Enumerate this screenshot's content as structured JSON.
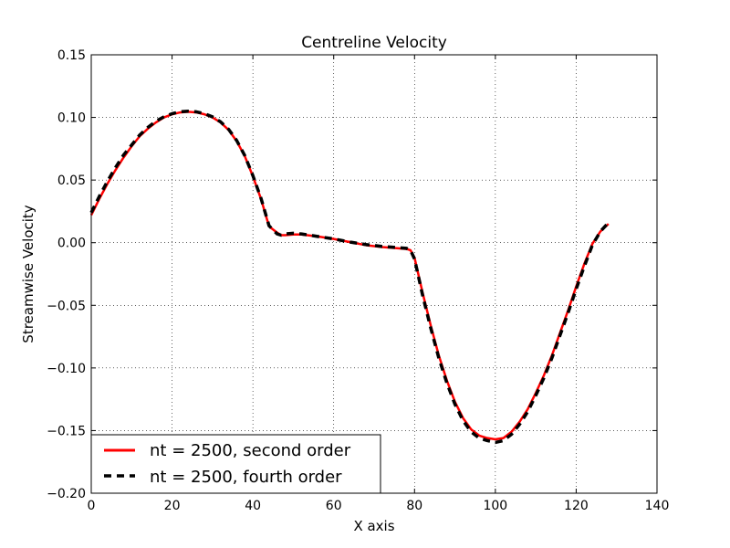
{
  "chart_data": {
    "type": "line",
    "title": "Centreline Velocity",
    "xlabel": "X axis",
    "ylabel": "Streamwise Velocity",
    "xlim": [
      0,
      140
    ],
    "ylim": [
      -0.2,
      0.15
    ],
    "xticks": [
      0,
      20,
      40,
      60,
      80,
      100,
      120,
      140
    ],
    "xtick_labels": [
      "0",
      "20",
      "40",
      "60",
      "80",
      "100",
      "120",
      "140"
    ],
    "yticks": [
      0.15,
      0.1,
      0.05,
      0.0,
      -0.05,
      -0.1,
      -0.15,
      -0.2
    ],
    "ytick_labels": [
      "0.15",
      "0.10",
      "0.05",
      "0.00",
      "−0.05",
      "−0.10",
      "−0.15",
      "−0.20"
    ],
    "grid": true,
    "legend_position": "lower-left",
    "series": [
      {
        "name": "nt = 2500, second order",
        "color": "#ff0000",
        "style": "solid",
        "x": [
          0,
          2,
          4,
          6,
          8,
          10,
          12,
          14,
          16,
          18,
          20,
          22,
          24,
          26,
          28,
          30,
          32,
          34,
          36,
          38,
          40,
          42,
          44,
          46,
          47,
          48,
          50,
          52,
          56,
          60,
          64,
          68,
          72,
          76,
          78,
          79,
          80,
          82,
          84,
          86,
          88,
          90,
          92,
          94,
          96,
          98,
          100,
          102,
          104,
          106,
          108,
          110,
          112,
          114,
          116,
          118,
          120,
          122,
          124,
          126,
          128
        ],
        "y": [
          0.022,
          0.035,
          0.047,
          0.058,
          0.068,
          0.077,
          0.085,
          0.091,
          0.096,
          0.1,
          0.1025,
          0.104,
          0.1045,
          0.104,
          0.1025,
          0.1,
          0.096,
          0.09,
          0.081,
          0.069,
          0.053,
          0.035,
          0.013,
          0.008,
          0.006,
          0.006,
          0.0065,
          0.0065,
          0.005,
          0.003,
          0.0005,
          -0.002,
          -0.0035,
          -0.0045,
          -0.005,
          -0.006,
          -0.012,
          -0.04,
          -0.066,
          -0.09,
          -0.11,
          -0.127,
          -0.14,
          -0.149,
          -0.154,
          -0.156,
          -0.157,
          -0.156,
          -0.151,
          -0.143,
          -0.133,
          -0.12,
          -0.106,
          -0.09,
          -0.072,
          -0.054,
          -0.035,
          -0.017,
          -0.001,
          0.009,
          0.015
        ]
      },
      {
        "name": "nt = 2500, fourth order",
        "color": "#000000",
        "style": "dashed",
        "x": [
          0,
          2,
          4,
          6,
          8,
          10,
          12,
          14,
          16,
          18,
          20,
          22,
          24,
          26,
          28,
          30,
          32,
          34,
          36,
          38,
          40,
          42,
          44,
          46,
          47,
          48,
          50,
          52,
          56,
          60,
          64,
          68,
          72,
          76,
          78,
          79,
          80,
          82,
          84,
          86,
          88,
          90,
          92,
          94,
          96,
          98,
          100,
          102,
          104,
          106,
          108,
          110,
          112,
          114,
          116,
          118,
          120,
          122,
          124,
          126,
          128
        ],
        "y": [
          0.024,
          0.037,
          0.049,
          0.06,
          0.07,
          0.078,
          0.086,
          0.092,
          0.097,
          0.1005,
          0.103,
          0.1045,
          0.105,
          0.1045,
          0.103,
          0.1005,
          0.0965,
          0.0905,
          0.0815,
          0.0695,
          0.0535,
          0.0355,
          0.0135,
          0.007,
          0.006,
          0.007,
          0.0075,
          0.007,
          0.005,
          0.003,
          0.0005,
          -0.0015,
          -0.003,
          -0.004,
          -0.0045,
          -0.006,
          -0.013,
          -0.042,
          -0.068,
          -0.092,
          -0.112,
          -0.129,
          -0.142,
          -0.151,
          -0.156,
          -0.158,
          -0.1595,
          -0.158,
          -0.153,
          -0.145,
          -0.135,
          -0.122,
          -0.108,
          -0.092,
          -0.074,
          -0.056,
          -0.037,
          -0.019,
          -0.002,
          0.009,
          0.016
        ]
      }
    ]
  }
}
